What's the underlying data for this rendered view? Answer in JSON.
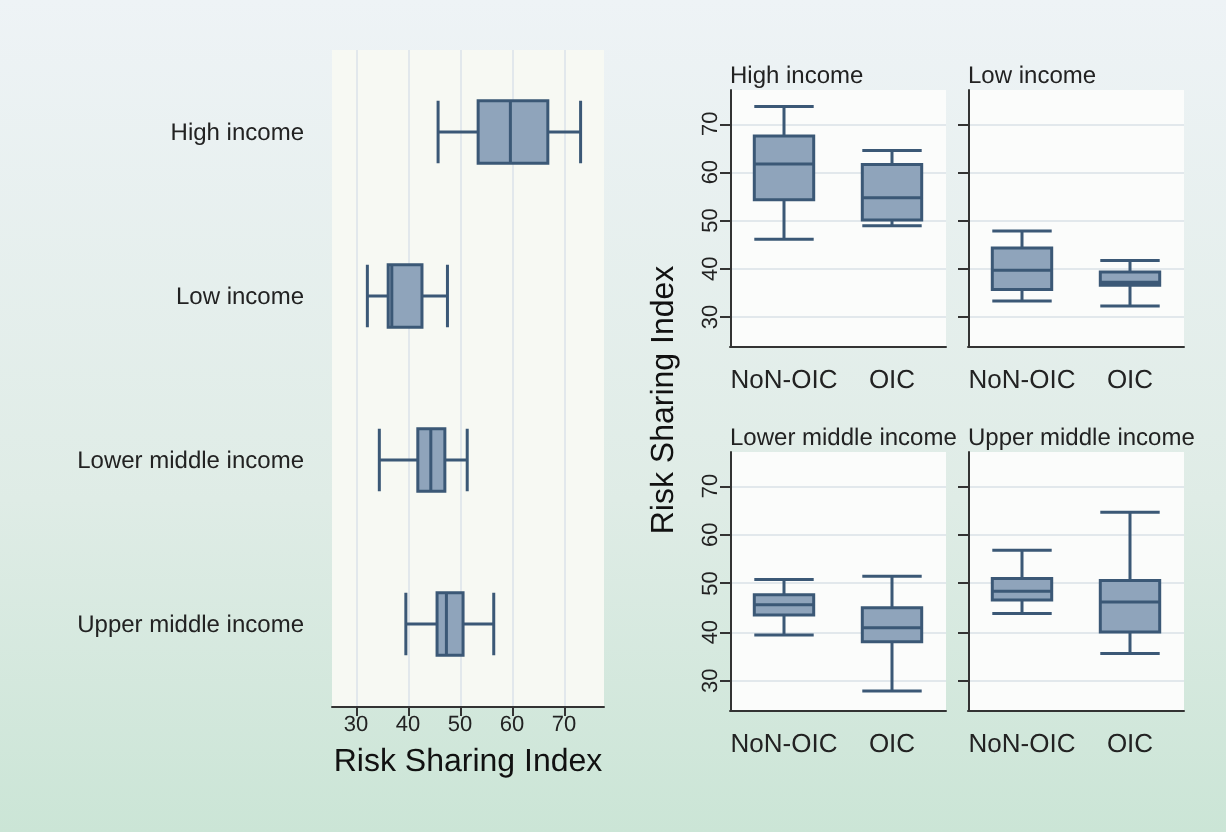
{
  "chart_data": [
    {
      "type": "box",
      "orientation": "horizontal",
      "xlabel": "Risk Sharing Index",
      "categories": [
        "High income",
        "Low income",
        "Lower middle income",
        "Upper middle income"
      ],
      "color": "#8fa4bb",
      "boxes": [
        {
          "low": 45.8,
          "q1": 53.5,
          "median": 59.7,
          "q3": 66.9,
          "high": 73.2
        },
        {
          "low": 32.2,
          "q1": 36.2,
          "median": 36.9,
          "q3": 42.7,
          "high": 47.6
        },
        {
          "low": 34.5,
          "q1": 41.9,
          "median": 44.4,
          "q3": 47.1,
          "high": 51.4
        },
        {
          "low": 39.6,
          "q1": 45.6,
          "median": 47.4,
          "q3": 50.6,
          "high": 56.5
        }
      ],
      "xlim": [
        25.4,
        77.7
      ],
      "xticks": [
        30,
        40,
        50,
        60,
        70
      ],
      "grid": "x"
    },
    {
      "type": "box",
      "title": "High income",
      "ylabel": "Risk Sharing Index",
      "categories": [
        "NoN-OIC",
        "OIC"
      ],
      "color": "#8fa4bb",
      "boxes": [
        {
          "low": 46.1,
          "q1": 54.3,
          "median": 61.7,
          "q3": 67.5,
          "high": 73.6
        },
        {
          "low": 48.9,
          "q1": 50.1,
          "median": 54.7,
          "q3": 61.6,
          "high": 64.5
        }
      ],
      "ylim": [
        24,
        77
      ],
      "yticks": [
        30,
        40,
        50,
        60,
        70
      ],
      "grid": "y"
    },
    {
      "type": "box",
      "title": "Low income",
      "categories": [
        "NoN-OIC",
        "OIC"
      ],
      "color": "#8fa4bb",
      "boxes": [
        {
          "low": 33.3,
          "q1": 35.7,
          "median": 39.7,
          "q3": 44.3,
          "high": 47.8
        },
        {
          "low": 32.3,
          "q1": 36.6,
          "median": 37.2,
          "q3": 39.3,
          "high": 41.7
        }
      ],
      "ylim": [
        24,
        77
      ],
      "yticks": [
        30,
        40,
        50,
        60,
        70
      ],
      "grid": "y",
      "tick_labels": "x"
    },
    {
      "type": "box",
      "title": "Lower middle income",
      "categories": [
        "NoN-OIC",
        "OIC"
      ],
      "color": "#8fa4bb",
      "boxes": [
        {
          "low": 39.4,
          "q1": 43.5,
          "median": 45.6,
          "q3": 47.7,
          "high": 50.8
        },
        {
          "low": 27.9,
          "q1": 38.0,
          "median": 40.9,
          "q3": 45.0,
          "high": 51.5
        }
      ],
      "ylim": [
        24,
        77
      ],
      "yticks": [
        30,
        40,
        50,
        60,
        70
      ],
      "grid": "y"
    },
    {
      "type": "box",
      "title": "Upper middle income",
      "categories": [
        "NoN-OIC",
        "OIC"
      ],
      "color": "#8fa4bb",
      "boxes": [
        {
          "low": 43.8,
          "q1": 46.6,
          "median": 48.4,
          "q3": 51.0,
          "high": 56.8
        },
        {
          "low": 35.6,
          "q1": 40.0,
          "median": 46.2,
          "q3": 50.6,
          "high": 64.6
        }
      ],
      "ylim": [
        24,
        77
      ],
      "yticks": [
        30,
        40,
        50,
        60,
        70
      ],
      "grid": "y",
      "tick_labels": "x"
    }
  ]
}
